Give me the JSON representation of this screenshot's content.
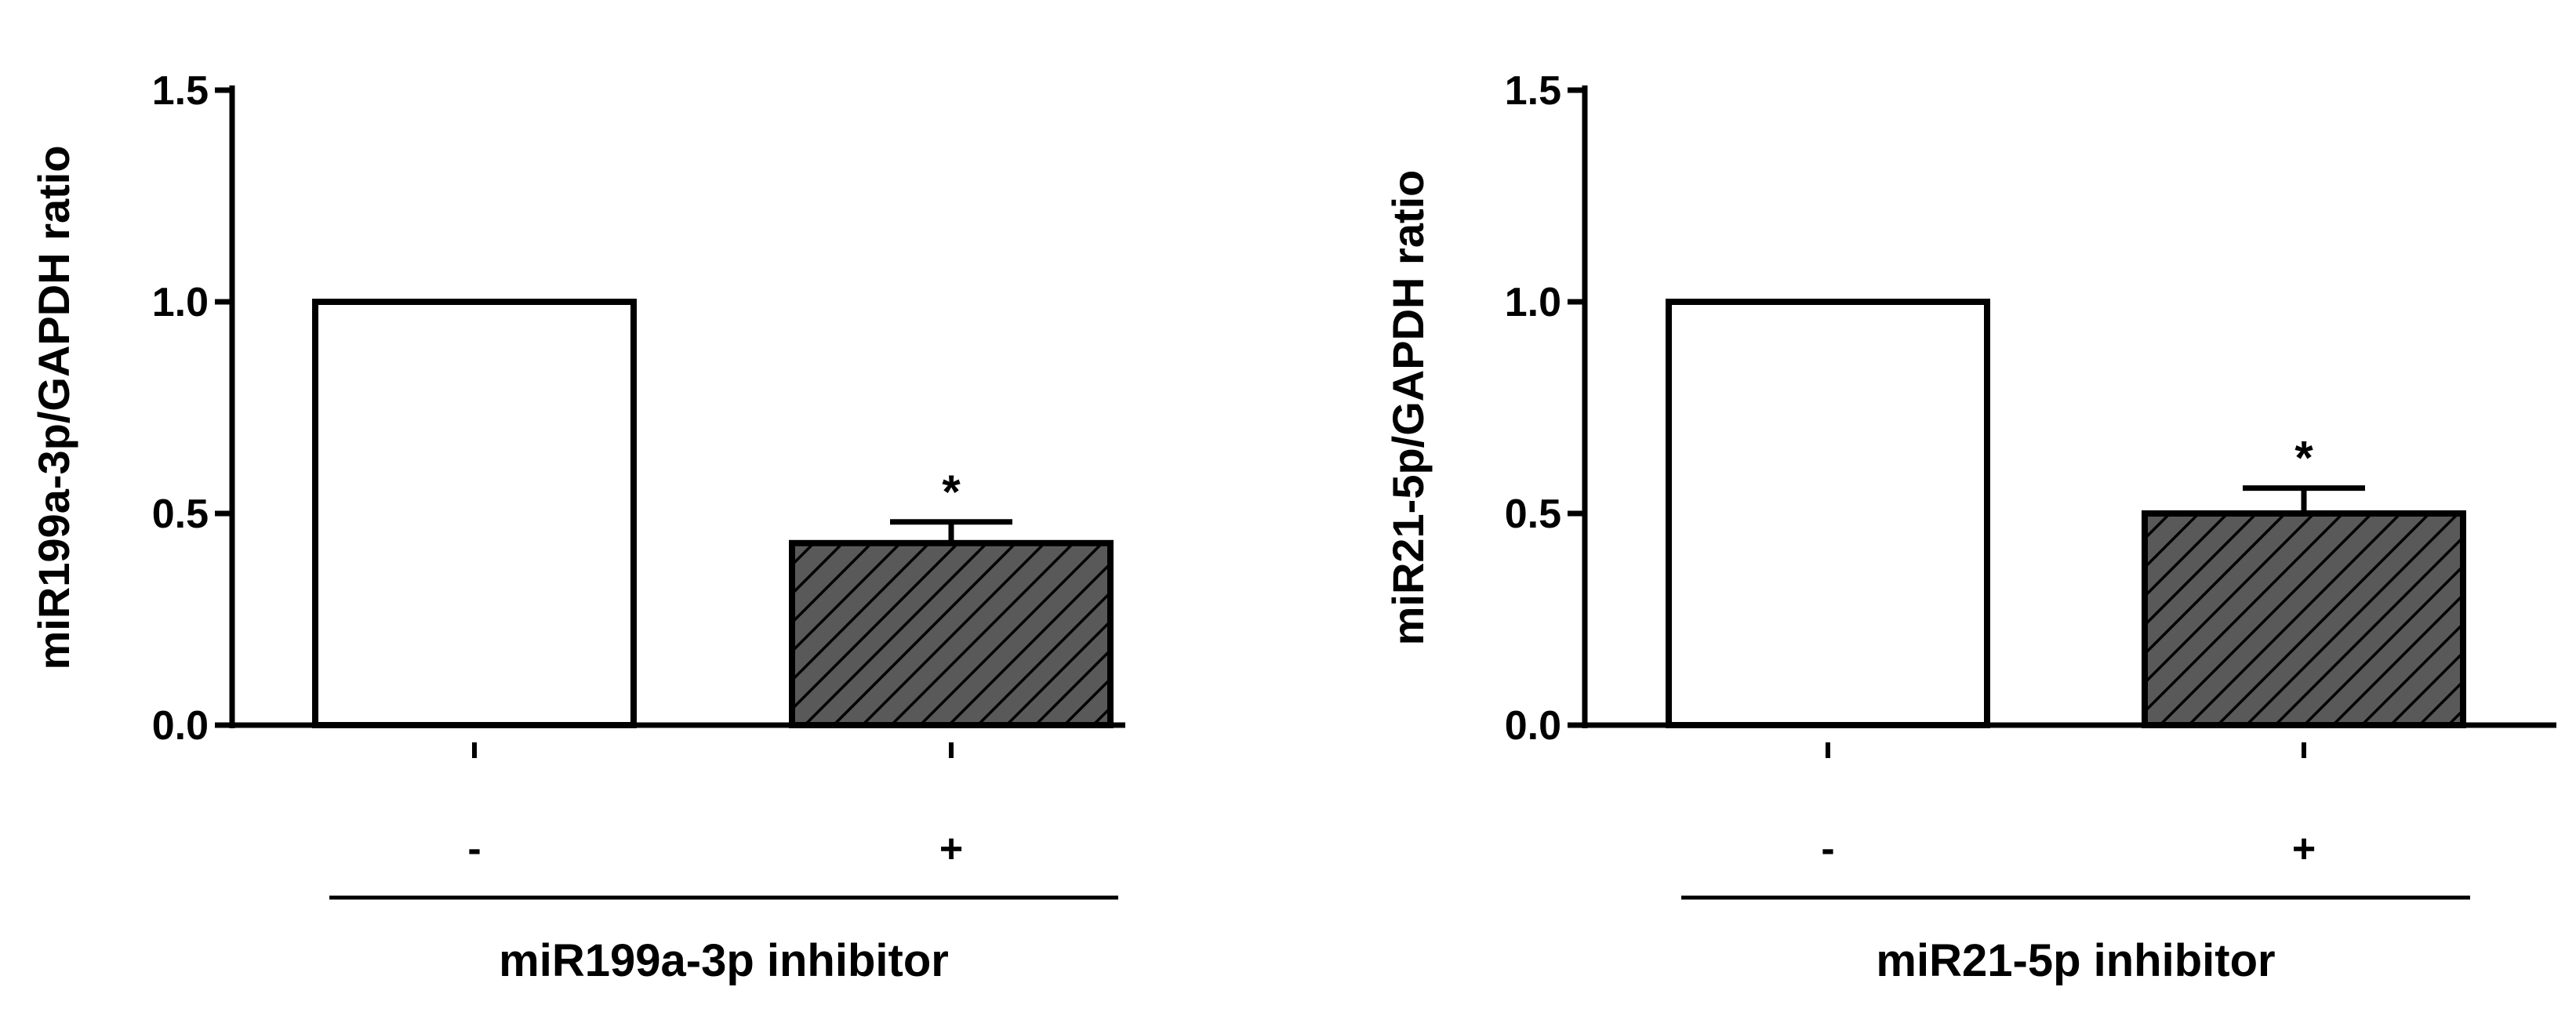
{
  "chart_data": [
    {
      "type": "bar",
      "categories": [
        "-",
        "+"
      ],
      "values": [
        1.0,
        0.43
      ],
      "errors": [
        0,
        0.05
      ],
      "significance": [
        "",
        "*"
      ],
      "fills": [
        "white",
        "hatched"
      ],
      "ylabel": "miR199a-3p/GAPDH  ratio",
      "group_label": "miR199a-3p inhibitor",
      "ylim": [
        0,
        1.5
      ],
      "yticks": [
        "0.0",
        "0.5",
        "1.0",
        "1.5"
      ],
      "ytick_values": [
        0,
        0.5,
        1.0,
        1.5
      ]
    },
    {
      "type": "bar",
      "categories": [
        "-",
        "+"
      ],
      "values": [
        1.0,
        0.5
      ],
      "errors": [
        0,
        0.06
      ],
      "significance": [
        "",
        "*"
      ],
      "fills": [
        "white",
        "hatched"
      ],
      "ylabel": "miR21-5p/GAPDH  ratio",
      "group_label": "miR21-5p inhibitor",
      "ylim": [
        0,
        1.5
      ],
      "yticks": [
        "0.0",
        "0.5",
        "1.0",
        "1.5"
      ],
      "ytick_values": [
        0,
        0.5,
        1.0,
        1.5
      ]
    }
  ],
  "colors": {
    "bar_outline": "#000000",
    "hatch_fill": "#595959",
    "hatch_line": "#000000",
    "open_fill": "#ffffff"
  }
}
